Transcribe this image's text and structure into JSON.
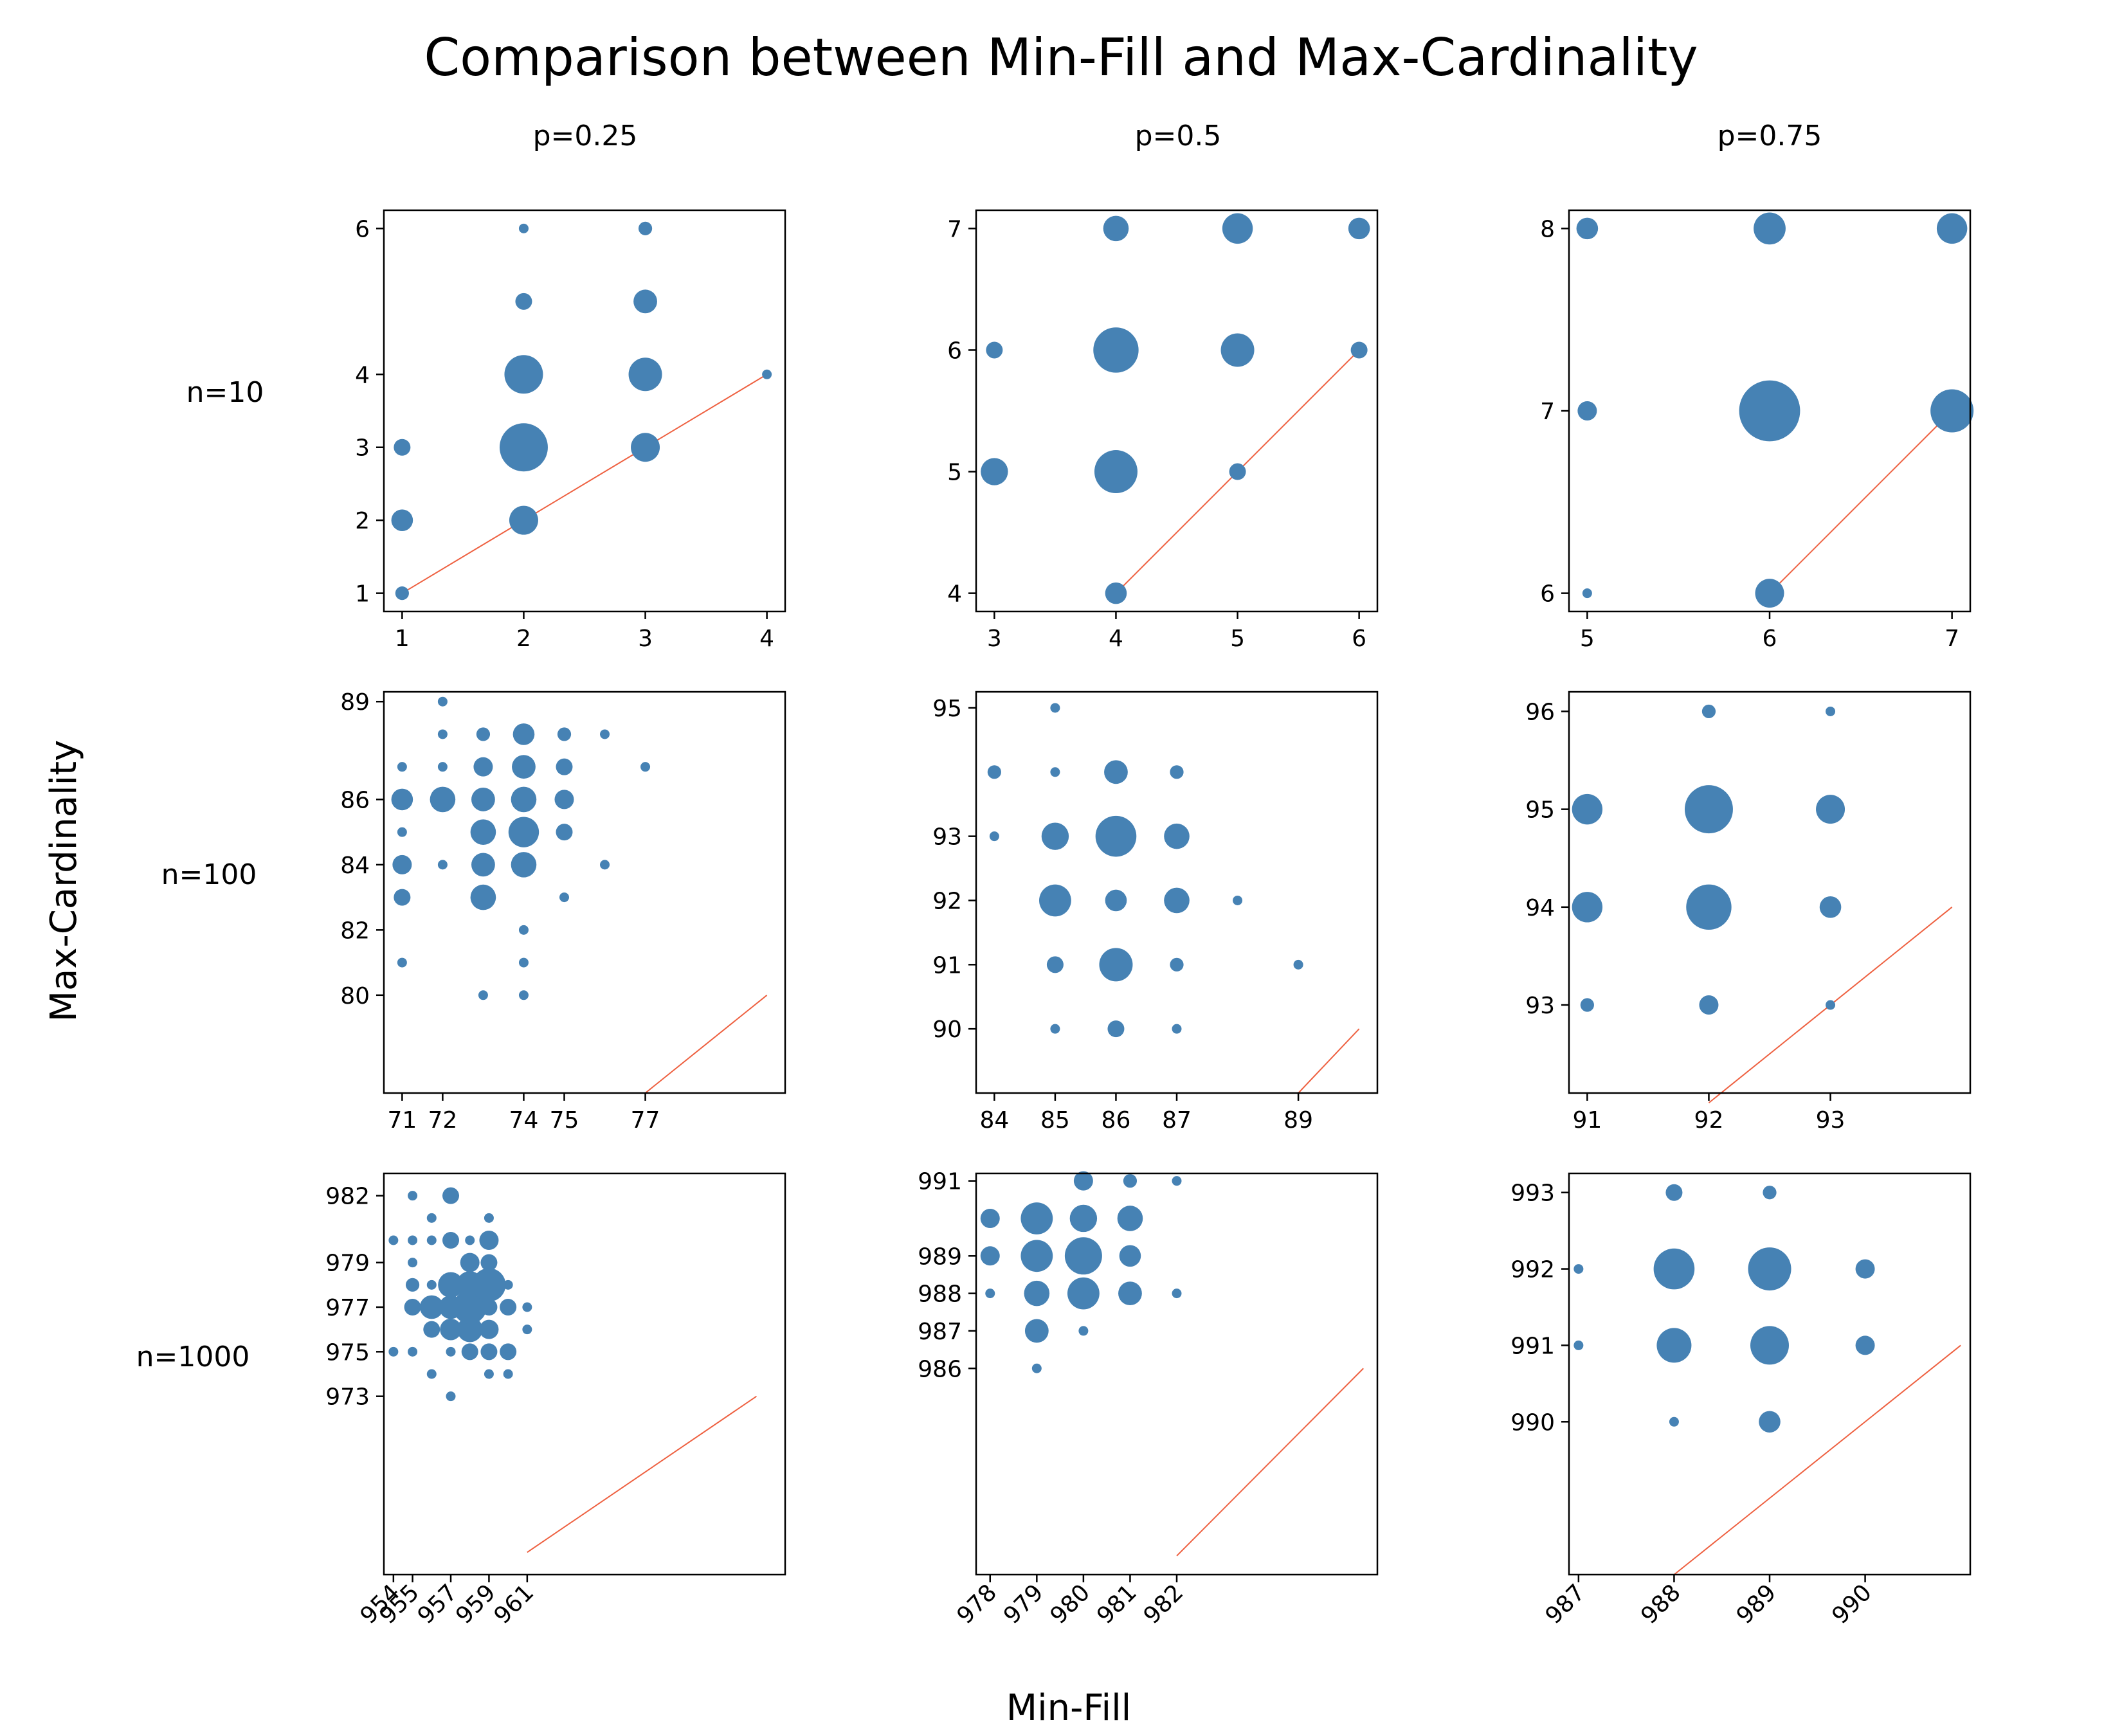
{
  "title": "Comparison between Min-Fill and Max-Cardinality",
  "xlabel": "Min-Fill",
  "ylabel": "Max-Cardinality",
  "column_titles": [
    "p=0.25",
    "p=0.5",
    "p=0.75"
  ],
  "row_titles": [
    "n=10",
    "n=100",
    "n=1000"
  ],
  "colors": {
    "points": "#4682b4",
    "reference_line": "#ee6040"
  },
  "chart_data": [
    {
      "type": "scatter",
      "row": 0,
      "col": 0,
      "title": "p=0.25 / n=10",
      "xlim": [
        0.85,
        4.15
      ],
      "ylim": [
        0.75,
        6.25
      ],
      "xticks": [
        1,
        2,
        3,
        4
      ],
      "yticks": [
        1,
        2,
        3,
        4,
        6
      ],
      "xtick_rotation": 0,
      "reference_line": [
        [
          1,
          1
        ],
        [
          4,
          4
        ]
      ],
      "points": [
        [
          1,
          1,
          2
        ],
        [
          1,
          2,
          5
        ],
        [
          1,
          3,
          3
        ],
        [
          2,
          2,
          9
        ],
        [
          2,
          3,
          25
        ],
        [
          2,
          4,
          16
        ],
        [
          2,
          5,
          3
        ],
        [
          2,
          6,
          1
        ],
        [
          3,
          3,
          9
        ],
        [
          3,
          4,
          12
        ],
        [
          3,
          5,
          6
        ],
        [
          3,
          6,
          2
        ],
        [
          4,
          4,
          1
        ]
      ]
    },
    {
      "type": "scatter",
      "row": 0,
      "col": 1,
      "title": "p=0.5 / n=10",
      "xlim": [
        2.85,
        6.15
      ],
      "ylim": [
        3.85,
        7.15
      ],
      "xticks": [
        3,
        4,
        5,
        6
      ],
      "yticks": [
        4,
        5,
        6,
        7
      ],
      "xtick_rotation": 0,
      "reference_line": [
        [
          4,
          4
        ],
        [
          6,
          6
        ]
      ],
      "points": [
        [
          3,
          5,
          8
        ],
        [
          3,
          6,
          3
        ],
        [
          4,
          4,
          5
        ],
        [
          4,
          5,
          20
        ],
        [
          4,
          6,
          22
        ],
        [
          4,
          7,
          7
        ],
        [
          5,
          5,
          3
        ],
        [
          5,
          6,
          12
        ],
        [
          5,
          7,
          10
        ],
        [
          6,
          6,
          3
        ],
        [
          6,
          7,
          5
        ]
      ]
    },
    {
      "type": "scatter",
      "row": 0,
      "col": 2,
      "title": "p=0.75 / n=10",
      "xlim": [
        4.9,
        7.1
      ],
      "ylim": [
        5.9,
        8.1
      ],
      "xticks": [
        5,
        6,
        7
      ],
      "yticks": [
        6,
        7,
        8
      ],
      "xtick_rotation": 0,
      "reference_line": [
        [
          6,
          6
        ],
        [
          7,
          7
        ]
      ],
      "points": [
        [
          5,
          6,
          1
        ],
        [
          5,
          7,
          4
        ],
        [
          5,
          8,
          5
        ],
        [
          6,
          6,
          9
        ],
        [
          6,
          7,
          40
        ],
        [
          6,
          8,
          11
        ],
        [
          7,
          7,
          20
        ],
        [
          7,
          8,
          10
        ]
      ]
    },
    {
      "type": "scatter",
      "row": 1,
      "col": 0,
      "title": "p=0.25 / n=100",
      "xlim": [
        70.55,
        80.45
      ],
      "ylim": [
        77,
        89.3
      ],
      "xticks": [
        71,
        72,
        74,
        75,
        77
      ],
      "yticks": [
        80,
        82,
        84,
        86,
        89
      ],
      "xtick_rotation": 0,
      "reference_line": [
        [
          77,
          77
        ],
        [
          80,
          80
        ]
      ],
      "points": [
        [
          71,
          81,
          1
        ],
        [
          71,
          83,
          3
        ],
        [
          71,
          84,
          4
        ],
        [
          71,
          85,
          1
        ],
        [
          71,
          86,
          5
        ],
        [
          71,
          87,
          1
        ],
        [
          72,
          84,
          1
        ],
        [
          72,
          86,
          7
        ],
        [
          72,
          87,
          1
        ],
        [
          72,
          88,
          1
        ],
        [
          72,
          89,
          1
        ],
        [
          73,
          80,
          1
        ],
        [
          73,
          83,
          7
        ],
        [
          73,
          84,
          6
        ],
        [
          73,
          85,
          7
        ],
        [
          73,
          86,
          6
        ],
        [
          73,
          87,
          4
        ],
        [
          73,
          88,
          2
        ],
        [
          74,
          80,
          1
        ],
        [
          74,
          81,
          1
        ],
        [
          74,
          82,
          1
        ],
        [
          74,
          84,
          7
        ],
        [
          74,
          85,
          10
        ],
        [
          74,
          86,
          7
        ],
        [
          74,
          87,
          6
        ],
        [
          74,
          88,
          5
        ],
        [
          75,
          83,
          1
        ],
        [
          75,
          85,
          3
        ],
        [
          75,
          86,
          4
        ],
        [
          75,
          87,
          3
        ],
        [
          75,
          88,
          2
        ],
        [
          76,
          84,
          1
        ],
        [
          76,
          88,
          1
        ],
        [
          77,
          87,
          1
        ]
      ]
    },
    {
      "type": "scatter",
      "row": 1,
      "col": 1,
      "title": "p=0.5 / n=100",
      "xlim": [
        83.7,
        90.3
      ],
      "ylim": [
        89,
        95.25
      ],
      "xticks": [
        84,
        85,
        86,
        87,
        89
      ],
      "yticks": [
        90,
        91,
        92,
        93,
        95
      ],
      "xtick_rotation": 0,
      "reference_line": [
        [
          89,
          89
        ],
        [
          90,
          90
        ]
      ],
      "points": [
        [
          84,
          93,
          1
        ],
        [
          84,
          94,
          2
        ],
        [
          85,
          90,
          1
        ],
        [
          85,
          91,
          3
        ],
        [
          85,
          92,
          11
        ],
        [
          85,
          93,
          8
        ],
        [
          85,
          94,
          1
        ],
        [
          85,
          95,
          1
        ],
        [
          86,
          90,
          3
        ],
        [
          86,
          91,
          12
        ],
        [
          86,
          92,
          5
        ],
        [
          86,
          93,
          18
        ],
        [
          86,
          94,
          6
        ],
        [
          87,
          90,
          1
        ],
        [
          87,
          91,
          2
        ],
        [
          87,
          92,
          7
        ],
        [
          87,
          93,
          7
        ],
        [
          87,
          94,
          2
        ],
        [
          88,
          92,
          1
        ],
        [
          89,
          91,
          1
        ]
      ]
    },
    {
      "type": "scatter",
      "row": 1,
      "col": 2,
      "title": "p=0.75 / n=100",
      "xlim": [
        90.85,
        94.15
      ],
      "ylim": [
        92.1,
        96.2
      ],
      "xticks": [
        91,
        92,
        93
      ],
      "yticks": [
        93,
        94,
        95,
        96
      ],
      "xtick_rotation": 0,
      "reference_line": [
        [
          92,
          92
        ],
        [
          94,
          94
        ]
      ],
      "points": [
        [
          91,
          93,
          2
        ],
        [
          91,
          94,
          10
        ],
        [
          91,
          95,
          10
        ],
        [
          92,
          93,
          4
        ],
        [
          92,
          94,
          22
        ],
        [
          92,
          95,
          25
        ],
        [
          92,
          96,
          2
        ],
        [
          93,
          93,
          1
        ],
        [
          93,
          94,
          5
        ],
        [
          93,
          95,
          9
        ],
        [
          93,
          96,
          1
        ]
      ]
    },
    {
      "type": "scatter",
      "row": 2,
      "col": 0,
      "title": "p=0.25 / n=1000",
      "xlim": [
        953.5,
        974.5
      ],
      "ylim": [
        965,
        983
      ],
      "xticks": [
        954,
        955,
        957,
        959,
        961
      ],
      "yticks": [
        973,
        975,
        977,
        979,
        982
      ],
      "xtick_rotation": 45,
      "reference_line": [
        [
          961,
          966
        ],
        [
          973,
          973
        ]
      ],
      "points": [
        [
          954,
          975,
          1
        ],
        [
          954,
          980,
          1
        ],
        [
          955,
          975,
          1
        ],
        [
          955,
          977,
          3
        ],
        [
          955,
          978,
          2
        ],
        [
          955,
          979,
          1
        ],
        [
          955,
          980,
          1
        ],
        [
          955,
          982,
          1
        ],
        [
          956,
          974,
          1
        ],
        [
          956,
          976,
          3
        ],
        [
          956,
          977,
          6
        ],
        [
          956,
          978,
          1
        ],
        [
          956,
          980,
          1
        ],
        [
          956,
          981,
          1
        ],
        [
          957,
          973,
          1
        ],
        [
          957,
          975,
          1
        ],
        [
          957,
          976,
          5
        ],
        [
          957,
          977,
          6
        ],
        [
          957,
          978,
          7
        ],
        [
          957,
          980,
          3
        ],
        [
          957,
          982,
          3
        ],
        [
          958,
          975,
          3
        ],
        [
          958,
          976,
          7
        ],
        [
          958,
          977,
          12
        ],
        [
          958,
          978,
          8
        ],
        [
          958,
          979,
          4
        ],
        [
          958,
          980,
          1
        ],
        [
          959,
          974,
          1
        ],
        [
          959,
          975,
          3
        ],
        [
          959,
          976,
          4
        ],
        [
          959,
          977,
          3
        ],
        [
          959,
          978,
          12
        ],
        [
          959,
          979,
          3
        ],
        [
          959,
          980,
          4
        ],
        [
          959,
          981,
          1
        ],
        [
          960,
          974,
          1
        ],
        [
          960,
          975,
          3
        ],
        [
          960,
          977,
          3
        ],
        [
          960,
          978,
          1
        ],
        [
          961,
          976,
          1
        ],
        [
          961,
          977,
          1
        ]
      ]
    },
    {
      "type": "scatter",
      "row": 2,
      "col": 1,
      "title": "p=0.5 / n=1000",
      "xlim": [
        977.7,
        986.3
      ],
      "ylim": [
        980.5,
        991.2
      ],
      "xticks": [
        978,
        979,
        980,
        981,
        982
      ],
      "yticks": [
        986,
        987,
        988,
        989,
        991
      ],
      "xtick_rotation": 45,
      "reference_line": [
        [
          982,
          981
        ],
        [
          986,
          986
        ]
      ],
      "points": [
        [
          978,
          988,
          1
        ],
        [
          978,
          989,
          4
        ],
        [
          978,
          990,
          4
        ],
        [
          979,
          986,
          1
        ],
        [
          979,
          987,
          6
        ],
        [
          979,
          988,
          7
        ],
        [
          979,
          989,
          11
        ],
        [
          979,
          990,
          11
        ],
        [
          980,
          987,
          1
        ],
        [
          980,
          988,
          11
        ],
        [
          980,
          989,
          15
        ],
        [
          980,
          990,
          8
        ],
        [
          980,
          991,
          4
        ],
        [
          981,
          988,
          6
        ],
        [
          981,
          989,
          5
        ],
        [
          981,
          990,
          7
        ],
        [
          981,
          991,
          2
        ],
        [
          982,
          988,
          1
        ],
        [
          982,
          991,
          1
        ]
      ]
    },
    {
      "type": "scatter",
      "row": 2,
      "col": 2,
      "title": "p=0.75 / n=1000",
      "xlim": [
        986.9,
        991.1
      ],
      "ylim": [
        988,
        993.25
      ],
      "xticks": [
        987,
        988,
        989,
        990
      ],
      "yticks": [
        990,
        991,
        992,
        993
      ],
      "xtick_rotation": 45,
      "reference_line": [
        [
          988,
          988
        ],
        [
          991,
          991
        ]
      ],
      "points": [
        [
          987,
          991,
          1
        ],
        [
          987,
          992,
          1
        ],
        [
          988,
          990,
          1
        ],
        [
          988,
          991,
          13
        ],
        [
          988,
          992,
          18
        ],
        [
          988,
          993,
          3
        ],
        [
          989,
          990,
          5
        ],
        [
          989,
          991,
          16
        ],
        [
          989,
          992,
          20
        ],
        [
          989,
          993,
          2
        ],
        [
          990,
          991,
          4
        ],
        [
          990,
          992,
          4
        ]
      ]
    }
  ]
}
